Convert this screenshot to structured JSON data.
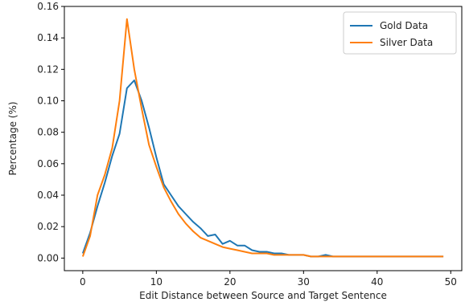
{
  "chart_data": {
    "type": "line",
    "title": "",
    "xlabel": "Edit Distance between Source and Target Sentence",
    "ylabel": "Percentage (%)",
    "xlim": [
      -2.5,
      51.5
    ],
    "ylim": [
      -0.008,
      0.16
    ],
    "xticks": [
      0,
      10,
      20,
      30,
      40,
      50
    ],
    "yticks": [
      0.0,
      0.02,
      0.04,
      0.06,
      0.08,
      0.1,
      0.12,
      0.14,
      0.16
    ],
    "xtick_labels": [
      "0",
      "10",
      "20",
      "30",
      "40",
      "50"
    ],
    "ytick_labels": [
      "0.00",
      "0.02",
      "0.04",
      "0.06",
      "0.08",
      "0.10",
      "0.12",
      "0.14",
      "0.16"
    ],
    "grid": false,
    "legend_position": "top-right",
    "series": [
      {
        "name": "Gold Data",
        "color": "#1f77b4",
        "x": [
          0,
          1,
          2,
          3,
          4,
          5,
          6,
          7,
          8,
          9,
          10,
          11,
          12,
          13,
          14,
          15,
          16,
          17,
          18,
          19,
          20,
          21,
          22,
          23,
          24,
          25,
          26,
          27,
          28,
          29,
          30,
          31,
          32,
          33,
          34,
          35,
          36,
          37,
          38,
          39,
          40,
          41,
          42,
          43,
          44,
          45,
          46,
          47,
          48,
          49
        ],
        "y": [
          0.003,
          0.016,
          0.033,
          0.048,
          0.065,
          0.079,
          0.108,
          0.113,
          0.1,
          0.083,
          0.064,
          0.047,
          0.04,
          0.033,
          0.028,
          0.023,
          0.019,
          0.014,
          0.015,
          0.009,
          0.011,
          0.008,
          0.008,
          0.005,
          0.004,
          0.004,
          0.003,
          0.003,
          0.002,
          0.002,
          0.002,
          0.001,
          0.001,
          0.002,
          0.001,
          0.001,
          0.001,
          0.001,
          0.001,
          0.001,
          0.001,
          0.001,
          0.001,
          0.001,
          0.001,
          0.001,
          0.001,
          0.001,
          0.001,
          0.001
        ]
      },
      {
        "name": "Silver Data",
        "color": "#ff7f0e",
        "x": [
          0,
          1,
          2,
          3,
          4,
          5,
          6,
          7,
          8,
          9,
          10,
          11,
          12,
          13,
          14,
          15,
          16,
          17,
          18,
          19,
          20,
          21,
          22,
          23,
          24,
          25,
          26,
          27,
          28,
          29,
          30,
          31,
          32,
          33,
          34,
          35,
          36,
          37,
          38,
          39,
          40,
          41,
          42,
          43,
          44,
          45,
          46,
          47,
          48,
          49
        ],
        "y": [
          0.001,
          0.014,
          0.04,
          0.053,
          0.07,
          0.1,
          0.152,
          0.12,
          0.095,
          0.072,
          0.058,
          0.045,
          0.036,
          0.028,
          0.022,
          0.017,
          0.013,
          0.011,
          0.009,
          0.007,
          0.006,
          0.005,
          0.004,
          0.003,
          0.003,
          0.003,
          0.002,
          0.002,
          0.002,
          0.002,
          0.002,
          0.001,
          0.001,
          0.001,
          0.001,
          0.001,
          0.001,
          0.001,
          0.001,
          0.001,
          0.001,
          0.001,
          0.001,
          0.001,
          0.001,
          0.001,
          0.001,
          0.001,
          0.001,
          0.001
        ]
      }
    ]
  }
}
